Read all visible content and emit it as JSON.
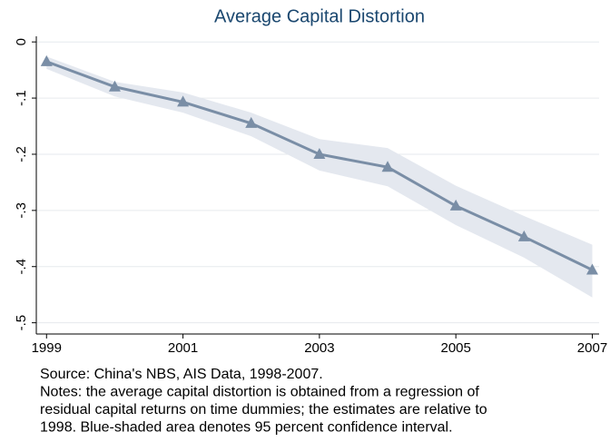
{
  "chart_data": {
    "type": "line",
    "title": "Average Capital Distortion",
    "x": [
      1999,
      2000,
      2001,
      2002,
      2003,
      2004,
      2005,
      2006,
      2007
    ],
    "values": [
      -0.035,
      -0.08,
      -0.107,
      -0.145,
      -0.2,
      -0.223,
      -0.292,
      -0.347,
      -0.406
    ],
    "upper": [
      -0.026,
      -0.071,
      -0.09,
      -0.126,
      -0.173,
      -0.189,
      -0.256,
      -0.31,
      -0.361
    ],
    "lower": [
      -0.048,
      -0.097,
      -0.126,
      -0.168,
      -0.229,
      -0.257,
      -0.326,
      -0.384,
      -0.455
    ],
    "color": "#7a8ea6",
    "band_color": "#e4e8ef",
    "grid_color": "#e6eaed",
    "xlim": [
      1998.85,
      2007.1
    ],
    "xticks": [
      1999,
      2001,
      2003,
      2005,
      2007
    ],
    "ylim": [
      -0.52,
      0.01
    ],
    "yticks": [
      0,
      {
        "value": -0.1,
        "label": "-.1"
      },
      {
        "value": -0.2,
        "label": "-.2"
      },
      {
        "value": -0.3,
        "label": "-.3"
      },
      {
        "value": -0.4,
        "label": "-.4"
      },
      {
        "value": -0.5,
        "label": "-.5"
      }
    ],
    "grid": true,
    "notes": [
      "Source: China's NBS, AIS Data, 1998-2007.",
      "Notes: the average capital distortion is obtained from a regression of",
      "residual capital returns on time dummies; the estimates are relative to",
      "1998. Blue-shaded area denotes 95 percent confidence interval."
    ]
  }
}
